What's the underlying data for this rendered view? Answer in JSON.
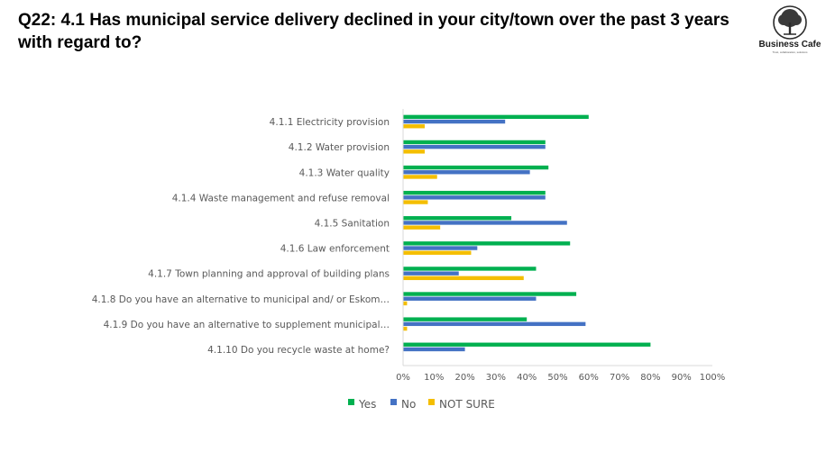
{
  "header": {
    "title": "Q22: 4.1 Has municipal service delivery declined in your city/town over the past 3 years with regard to?"
  },
  "logo": {
    "name": "Business Cafe",
    "tagline": "Trust, collaboration, solutions",
    "icon": "tree-icon"
  },
  "chart_data": {
    "type": "bar",
    "orientation": "horizontal",
    "categories": [
      "4.1.1 Electricity provision",
      "4.1.2 Water provision",
      "4.1.3 Water quality",
      "4.1.4 Waste management and refuse removal",
      "4.1.5 Sanitation",
      "4.1.6 Law enforcement",
      "4.1.7 Town planning and approval of building plans",
      "4.1.8 Do you have an alternative to municipal and/ or Eskom…",
      "4.1.9 Do you have an alternative to supplement municipal…",
      "4.1.10 Do you recycle waste at home?"
    ],
    "series": [
      {
        "name": "Yes",
        "color": "#00B050",
        "values": [
          60,
          46,
          47,
          46,
          35,
          54,
          43,
          56,
          40,
          80
        ]
      },
      {
        "name": "No",
        "color": "#4472C4",
        "values": [
          33,
          46,
          41,
          46,
          53,
          24,
          18,
          43,
          59,
          20
        ]
      },
      {
        "name": "NOT SURE",
        "color": "#F4BE00",
        "values": [
          7,
          7,
          11,
          8,
          12,
          22,
          39,
          1,
          1,
          0
        ]
      }
    ],
    "xticks": [
      "0%",
      "10%",
      "20%",
      "30%",
      "40%",
      "50%",
      "60%",
      "70%",
      "80%",
      "90%",
      "100%"
    ],
    "xlim": [
      0,
      100
    ],
    "grid": false,
    "legend_position": "bottom"
  }
}
